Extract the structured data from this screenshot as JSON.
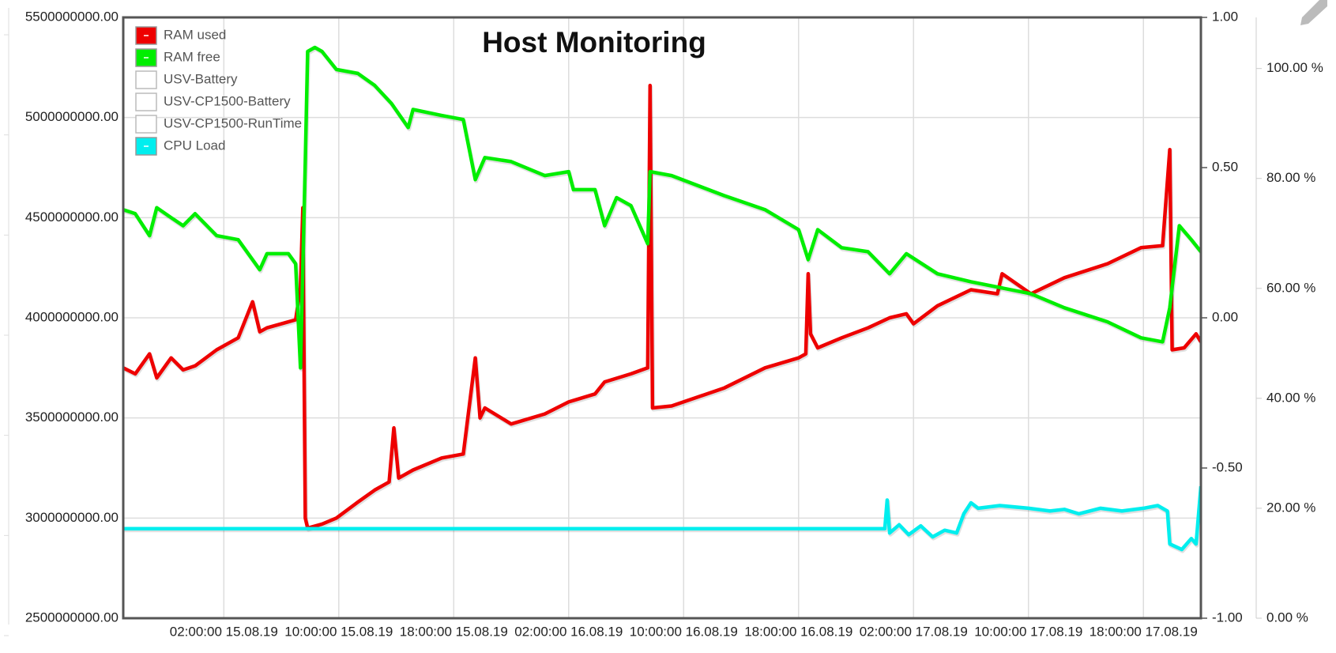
{
  "chart_data": {
    "type": "line",
    "title": "Host Monitoring",
    "xlim": [
      "2019-08-14T19:00",
      "2019-08-17T22:00"
    ],
    "xticks": [
      {
        "value": "2019-08-15T02:00",
        "label": "02:00:00 15.08.19"
      },
      {
        "value": "2019-08-15T10:00",
        "label": "10:00:00 15.08.19"
      },
      {
        "value": "2019-08-15T18:00",
        "label": "18:00:00 15.08.19"
      },
      {
        "value": "2019-08-16T02:00",
        "label": "02:00:00 16.08.19"
      },
      {
        "value": "2019-08-16T10:00",
        "label": "10:00:00 16.08.19"
      },
      {
        "value": "2019-08-16T18:00",
        "label": "18:00:00 16.08.19"
      },
      {
        "value": "2019-08-17T02:00",
        "label": "02:00:00 17.08.19"
      },
      {
        "value": "2019-08-17T10:00",
        "label": "10:00:00 17.08.19"
      },
      {
        "value": "2019-08-17T18:00",
        "label": "18:00:00 17.08.19"
      }
    ],
    "ylim": [
      2500000000,
      5500000000
    ],
    "yticks": [
      {
        "value": 2500000000,
        "label": "2500000000.00"
      },
      {
        "value": 3000000000,
        "label": "3000000000.00"
      },
      {
        "value": 3500000000,
        "label": "3500000000.00"
      },
      {
        "value": 4000000000,
        "label": "4000000000.00"
      },
      {
        "value": 4500000000,
        "label": "4500000000.00"
      },
      {
        "value": 5000000000,
        "label": "5000000000.00"
      },
      {
        "value": 5500000000,
        "label": "5500000000.00"
      }
    ],
    "y2lim": [
      -1,
      1
    ],
    "y2ticks": [
      {
        "value": -1,
        "label": "-1.00"
      },
      {
        "value": -0.5,
        "label": "-0.50"
      },
      {
        "value": 0,
        "label": "0.00"
      },
      {
        "value": 0.5,
        "label": "0.50"
      },
      {
        "value": 1,
        "label": "1.00"
      }
    ],
    "y3lim": [
      0,
      109.3
    ],
    "y3ticks": [
      {
        "value": 0,
        "label": "0.00 %"
      },
      {
        "value": 20,
        "label": "20.00 %"
      },
      {
        "value": 40,
        "label": "40.00 %"
      },
      {
        "value": 60,
        "label": "60.00 %"
      },
      {
        "value": 80,
        "label": "80.00 %"
      },
      {
        "value": 100,
        "label": "100.00 %"
      }
    ],
    "grid": true,
    "legend": "top-left",
    "series": [
      {
        "name": "RAM used",
        "color": "#ee0000",
        "axis": "y",
        "x": [
          "2019-08-14T19:00",
          "2019-08-14T19:50",
          "2019-08-14T20:50",
          "2019-08-14T21:20",
          "2019-08-14T22:20",
          "2019-08-14T23:10",
          "2019-08-15T00:00",
          "2019-08-15T01:30",
          "2019-08-15T03:00",
          "2019-08-15T04:00",
          "2019-08-15T04:30",
          "2019-08-15T05:00",
          "2019-08-15T06:30",
          "2019-08-15T07:00",
          "2019-08-15T07:20",
          "2019-08-15T07:30",
          "2019-08-15T07:40",
          "2019-08-15T07:50",
          "2019-08-15T08:50",
          "2019-08-15T09:50",
          "2019-08-15T11:20",
          "2019-08-15T12:30",
          "2019-08-15T13:30",
          "2019-08-15T13:50",
          "2019-08-15T14:10",
          "2019-08-15T15:10",
          "2019-08-15T17:10",
          "2019-08-15T18:40",
          "2019-08-15T19:30",
          "2019-08-15T19:50",
          "2019-08-15T20:10",
          "2019-08-15T22:00",
          "2019-08-16T00:20",
          "2019-08-16T02:00",
          "2019-08-16T03:50",
          "2019-08-16T04:30",
          "2019-08-16T06:20",
          "2019-08-16T07:30",
          "2019-08-16T07:40",
          "2019-08-16T07:50",
          "2019-08-16T09:10",
          "2019-08-16T12:50",
          "2019-08-16T15:40",
          "2019-08-16T18:00",
          "2019-08-16T18:30",
          "2019-08-16T18:40",
          "2019-08-16T18:50",
          "2019-08-16T19:20",
          "2019-08-16T21:00",
          "2019-08-16T22:50",
          "2019-08-17T00:20",
          "2019-08-17T01:30",
          "2019-08-17T02:00",
          "2019-08-17T03:40",
          "2019-08-17T06:00",
          "2019-08-17T07:50",
          "2019-08-17T08:10",
          "2019-08-17T10:10",
          "2019-08-17T12:30",
          "2019-08-17T15:30",
          "2019-08-17T17:50",
          "2019-08-17T19:20",
          "2019-08-17T19:50",
          "2019-08-17T20:00",
          "2019-08-17T20:50",
          "2019-08-17T21:40",
          "2019-08-17T22:00"
        ],
        "values": [
          3750000000.0,
          3720000000.0,
          3820000000.0,
          3700000000.0,
          3800000000.0,
          3740000000.0,
          3760000000.0,
          3840000000.0,
          3900000000.0,
          4080000000.0,
          3930000000.0,
          3950000000.0,
          3980000000.0,
          3990000000.0,
          4150000000.0,
          4550000000.0,
          3000000000.0,
          2950000000.0,
          2970000000.0,
          3000000000.0,
          3080000000.0,
          3140000000.0,
          3180000000.0,
          3450000000.0,
          3200000000.0,
          3240000000.0,
          3300000000.0,
          3320000000.0,
          3800000000.0,
          3500000000.0,
          3550000000.0,
          3470000000.0,
          3520000000.0,
          3580000000.0,
          3620000000.0,
          3680000000.0,
          3720000000.0,
          3750000000.0,
          5160000000.0,
          3550000000.0,
          3560000000.0,
          3650000000.0,
          3750000000.0,
          3800000000.0,
          3820000000.0,
          4220000000.0,
          3920000000.0,
          3850000000.0,
          3900000000.0,
          3950000000.0,
          4000000000.0,
          4020000000.0,
          3970000000.0,
          4060000000.0,
          4140000000.0,
          4120000000.0,
          4220000000.0,
          4120000000.0,
          4200000000.0,
          4270000000.0,
          4350000000.0,
          4360000000.0,
          4840000000.0,
          3840000000.0,
          3850000000.0,
          3920000000.0,
          3880000000.0
        ]
      },
      {
        "name": "RAM free",
        "color": "#00ee00",
        "axis": "y",
        "x": [
          "2019-08-14T19:00",
          "2019-08-14T19:50",
          "2019-08-14T20:50",
          "2019-08-14T21:20",
          "2019-08-14T22:20",
          "2019-08-14T23:10",
          "2019-08-15T00:00",
          "2019-08-15T01:30",
          "2019-08-15T03:00",
          "2019-08-15T04:30",
          "2019-08-15T05:00",
          "2019-08-15T06:30",
          "2019-08-15T07:00",
          "2019-08-15T07:20",
          "2019-08-15T07:40",
          "2019-08-15T07:50",
          "2019-08-15T08:20",
          "2019-08-15T08:50",
          "2019-08-15T09:50",
          "2019-08-15T11:20",
          "2019-08-15T12:30",
          "2019-08-15T13:40",
          "2019-08-15T14:50",
          "2019-08-15T15:10",
          "2019-08-15T17:10",
          "2019-08-15T18:40",
          "2019-08-15T19:30",
          "2019-08-15T20:10",
          "2019-08-15T22:00",
          "2019-08-16T00:20",
          "2019-08-16T02:00",
          "2019-08-16T02:20",
          "2019-08-16T03:50",
          "2019-08-16T04:30",
          "2019-08-16T05:20",
          "2019-08-16T06:20",
          "2019-08-16T07:30",
          "2019-08-16T07:40",
          "2019-08-16T09:10",
          "2019-08-16T12:50",
          "2019-08-16T15:40",
          "2019-08-16T18:00",
          "2019-08-16T18:40",
          "2019-08-16T19:20",
          "2019-08-16T21:00",
          "2019-08-16T22:50",
          "2019-08-17T00:20",
          "2019-08-17T01:30",
          "2019-08-17T03:40",
          "2019-08-17T06:00",
          "2019-08-17T10:10",
          "2019-08-17T12:30",
          "2019-08-17T15:30",
          "2019-08-17T17:50",
          "2019-08-17T19:20",
          "2019-08-17T19:50",
          "2019-08-17T20:30",
          "2019-08-17T21:20",
          "2019-08-17T22:00"
        ],
        "values": [
          4540000000.0,
          4520000000.0,
          4410000000.0,
          4550000000.0,
          4500000000.0,
          4460000000.0,
          4520000000.0,
          4410000000.0,
          4390000000.0,
          4240000000.0,
          4320000000.0,
          4320000000.0,
          4270000000.0,
          3750000000.0,
          4780000000.0,
          5330000000.0,
          5350000000.0,
          5330000000.0,
          5240000000.0,
          5220000000.0,
          5160000000.0,
          5070000000.0,
          4950000000.0,
          5040000000.0,
          5010000000.0,
          4990000000.0,
          4690000000.0,
          4800000000.0,
          4780000000.0,
          4710000000.0,
          4730000000.0,
          4640000000.0,
          4640000000.0,
          4460000000.0,
          4600000000.0,
          4560000000.0,
          4370000000.0,
          4730000000.0,
          4710000000.0,
          4610000000.0,
          4540000000.0,
          4440000000.0,
          4290000000.0,
          4440000000.0,
          4350000000.0,
          4330000000.0,
          4220000000.0,
          4320000000.0,
          4220000000.0,
          4180000000.0,
          4120000000.0,
          4050000000.0,
          3980000000.0,
          3900000000.0,
          3880000000.0,
          4050000000.0,
          4460000000.0,
          4390000000.0,
          4330000000.0
        ]
      },
      {
        "name": "USV-Battery",
        "visible": false
      },
      {
        "name": "USV-CP1500-Battery",
        "visible": false
      },
      {
        "name": "USV-CP1500-RunTime",
        "visible": false
      },
      {
        "name": "CPU Load",
        "color": "#00eeee",
        "axis": "y3",
        "x": [
          "2019-08-14T19:00",
          "2019-08-17T00:00",
          "2019-08-17T00:10",
          "2019-08-17T00:20",
          "2019-08-17T01:00",
          "2019-08-17T01:40",
          "2019-08-17T02:30",
          "2019-08-17T03:20",
          "2019-08-17T04:10",
          "2019-08-17T05:00",
          "2019-08-17T05:30",
          "2019-08-17T06:00",
          "2019-08-17T06:30",
          "2019-08-17T08:00",
          "2019-08-17T10:00",
          "2019-08-17T11:30",
          "2019-08-17T12:30",
          "2019-08-17T13:30",
          "2019-08-17T15:00",
          "2019-08-17T16:30",
          "2019-08-17T18:00",
          "2019-08-17T19:00",
          "2019-08-17T19:40",
          "2019-08-17T19:50",
          "2019-08-17T20:40",
          "2019-08-17T21:20",
          "2019-08-17T21:40",
          "2019-08-17T22:00"
        ],
        "values": [
          16.3,
          16.3,
          21.5,
          15.5,
          17,
          15.2,
          16.8,
          14.8,
          16,
          15.5,
          19,
          21,
          20,
          20.5,
          20,
          19.5,
          19.8,
          19,
          20,
          19.5,
          20,
          20.5,
          19.5,
          13.5,
          12.5,
          14.5,
          13.5,
          24
        ]
      }
    ]
  }
}
